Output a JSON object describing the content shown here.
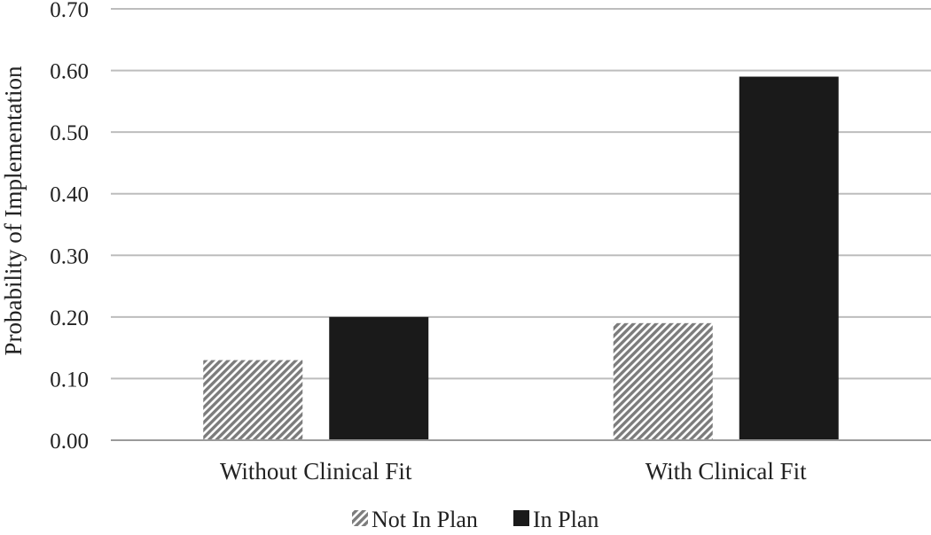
{
  "chart_data": {
    "type": "bar",
    "title": "",
    "xlabel": "",
    "ylabel": "Probability of Implementation",
    "ylim": [
      0,
      0.7
    ],
    "yticks": [
      "0.00",
      "0.10",
      "0.20",
      "0.30",
      "0.40",
      "0.50",
      "0.60",
      "0.70"
    ],
    "grid": true,
    "legend_position": "bottom",
    "categories": [
      "Without Clinical Fit",
      "With Clinical Fit"
    ],
    "series": [
      {
        "name": "Not In Plan",
        "values": [
          0.13,
          0.19
        ],
        "pattern": "diagonal-hatch",
        "color": "#8a8a8a"
      },
      {
        "name": "In Plan",
        "values": [
          0.2,
          0.59
        ],
        "pattern": "solid",
        "color": "#1a1a1a"
      }
    ]
  }
}
